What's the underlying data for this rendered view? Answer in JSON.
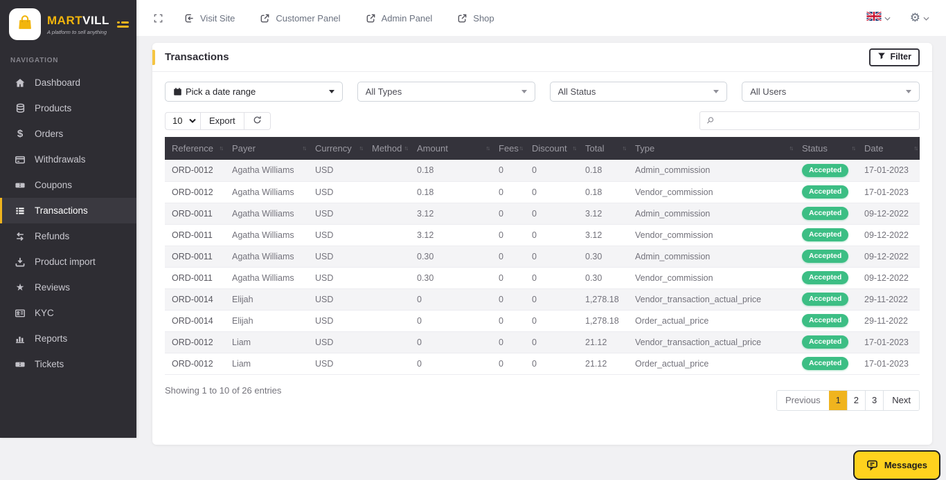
{
  "colors": {
    "accent_yellow": "#F0B41E",
    "sidebar_bg": "#2E2D33",
    "table_header_bg": "#34333B",
    "badge_green": "#3CBE84",
    "messages_yellow": "#FFD21E"
  },
  "brand": {
    "name_primary": "MART",
    "name_secondary": "VILL",
    "tagline": "A platform to sell anything"
  },
  "topbar": {
    "links": [
      {
        "label": "Visit Site",
        "icon": "enter-icon"
      },
      {
        "label": "Customer Panel",
        "icon": "external-link-icon"
      },
      {
        "label": "Admin Panel",
        "icon": "external-link-icon"
      },
      {
        "label": "Shop",
        "icon": "external-link-icon"
      }
    ],
    "language_flag": "uk-flag",
    "settings_icon": "gear-icon"
  },
  "sidebar": {
    "section_label": "NAVIGATION",
    "items": [
      {
        "label": "Dashboard",
        "icon": "home-icon",
        "active": false
      },
      {
        "label": "Products",
        "icon": "database-icon",
        "active": false
      },
      {
        "label": "Orders",
        "icon": "dollar-icon",
        "active": false
      },
      {
        "label": "Withdrawals",
        "icon": "credit-card-icon",
        "active": false
      },
      {
        "label": "Coupons",
        "icon": "ticket-icon",
        "active": false
      },
      {
        "label": "Transactions",
        "icon": "list-icon",
        "active": true
      },
      {
        "label": "Refunds",
        "icon": "exchange-icon",
        "active": false
      },
      {
        "label": "Product import",
        "icon": "download-icon",
        "active": false
      },
      {
        "label": "Reviews",
        "icon": "star-icon",
        "active": false
      },
      {
        "label": "KYC",
        "icon": "id-card-icon",
        "active": false
      },
      {
        "label": "Reports",
        "icon": "bar-chart-icon",
        "active": false
      },
      {
        "label": "Tickets",
        "icon": "ticket-icon",
        "active": false
      }
    ]
  },
  "page": {
    "title": "Transactions",
    "filter_button_label": "Filter"
  },
  "filters": [
    {
      "value": "Pick a date range",
      "icon": "calendar-icon"
    },
    {
      "value": "All Types"
    },
    {
      "value": "All Status"
    },
    {
      "value": "All Users"
    }
  ],
  "toolbar": {
    "page_size": "10",
    "export_label": "Export",
    "search_placeholder": ""
  },
  "table": {
    "columns": [
      "Reference",
      "Payer",
      "Currency",
      "Method",
      "Amount",
      "Fees",
      "Discount",
      "Total",
      "Type",
      "Status",
      "Date"
    ],
    "rows": [
      {
        "reference": "ORD-0012",
        "payer": "Agatha Williams",
        "currency": "USD",
        "method": "",
        "amount": "0.18",
        "fees": "0",
        "discount": "0",
        "total": "0.18",
        "type": "Admin_commission",
        "status": "Accepted",
        "date": "17-01-2023"
      },
      {
        "reference": "ORD-0012",
        "payer": "Agatha Williams",
        "currency": "USD",
        "method": "",
        "amount": "0.18",
        "fees": "0",
        "discount": "0",
        "total": "0.18",
        "type": "Vendor_commission",
        "status": "Accepted",
        "date": "17-01-2023"
      },
      {
        "reference": "ORD-0011",
        "payer": "Agatha Williams",
        "currency": "USD",
        "method": "",
        "amount": "3.12",
        "fees": "0",
        "discount": "0",
        "total": "3.12",
        "type": "Admin_commission",
        "status": "Accepted",
        "date": "09-12-2022"
      },
      {
        "reference": "ORD-0011",
        "payer": "Agatha Williams",
        "currency": "USD",
        "method": "",
        "amount": "3.12",
        "fees": "0",
        "discount": "0",
        "total": "3.12",
        "type": "Vendor_commission",
        "status": "Accepted",
        "date": "09-12-2022"
      },
      {
        "reference": "ORD-0011",
        "payer": "Agatha Williams",
        "currency": "USD",
        "method": "",
        "amount": "0.30",
        "fees": "0",
        "discount": "0",
        "total": "0.30",
        "type": "Admin_commission",
        "status": "Accepted",
        "date": "09-12-2022"
      },
      {
        "reference": "ORD-0011",
        "payer": "Agatha Williams",
        "currency": "USD",
        "method": "",
        "amount": "0.30",
        "fees": "0",
        "discount": "0",
        "total": "0.30",
        "type": "Vendor_commission",
        "status": "Accepted",
        "date": "09-12-2022"
      },
      {
        "reference": "ORD-0014",
        "payer": "Elijah",
        "currency": "USD",
        "method": "",
        "amount": "0",
        "fees": "0",
        "discount": "0",
        "total": "1,278.18",
        "type": "Vendor_transaction_actual_price",
        "status": "Accepted",
        "date": "29-11-2022"
      },
      {
        "reference": "ORD-0014",
        "payer": "Elijah",
        "currency": "USD",
        "method": "",
        "amount": "0",
        "fees": "0",
        "discount": "0",
        "total": "1,278.18",
        "type": "Order_actual_price",
        "status": "Accepted",
        "date": "29-11-2022"
      },
      {
        "reference": "ORD-0012",
        "payer": "Liam",
        "currency": "USD",
        "method": "",
        "amount": "0",
        "fees": "0",
        "discount": "0",
        "total": "21.12",
        "type": "Vendor_transaction_actual_price",
        "status": "Accepted",
        "date": "17-01-2023"
      },
      {
        "reference": "ORD-0012",
        "payer": "Liam",
        "currency": "USD",
        "method": "",
        "amount": "0",
        "fees": "0",
        "discount": "0",
        "total": "21.12",
        "type": "Order_actual_price",
        "status": "Accepted",
        "date": "17-01-2023"
      }
    ]
  },
  "footer": {
    "summary": "Showing 1 to 10 of 26 entries",
    "pagination": [
      {
        "label": "Previous",
        "active": false
      },
      {
        "label": "1",
        "active": true
      },
      {
        "label": "2",
        "active": false
      },
      {
        "label": "3",
        "active": false
      },
      {
        "label": "Next",
        "active": false
      }
    ]
  },
  "messages": {
    "label": "Messages"
  }
}
